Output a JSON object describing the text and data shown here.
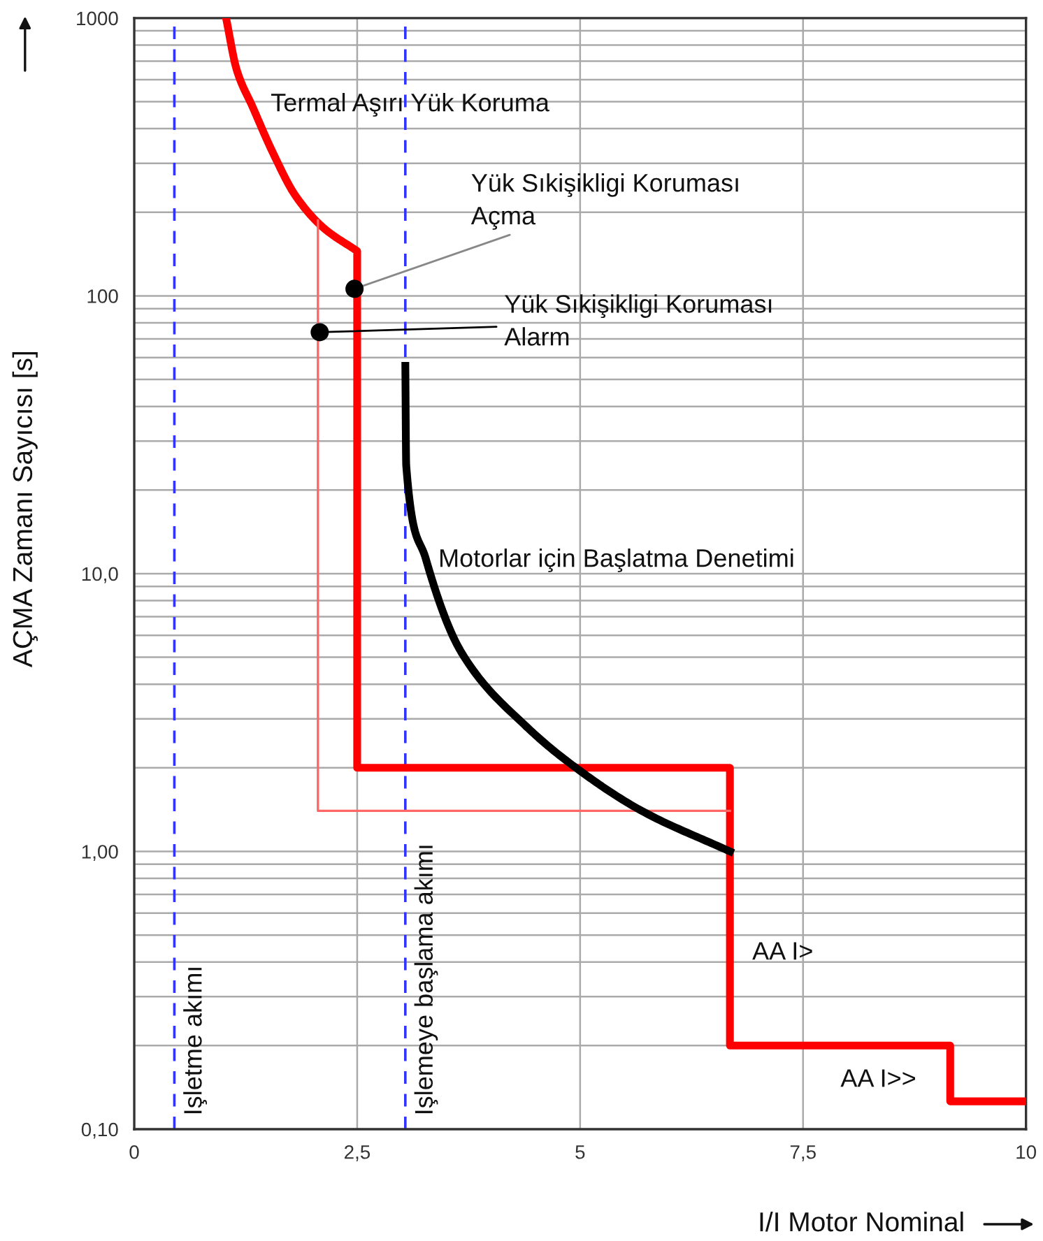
{
  "chart_data": {
    "type": "line",
    "xlabel": "I/I Motor Nominal",
    "ylabel": "AÇMA Zamanı Sayıcısı [s]",
    "log": "y",
    "grid": true,
    "legend": false,
    "marker": "none",
    "line_style": "solid",
    "xlim": [
      0,
      10
    ],
    "xticks": [
      0,
      {
        "value": 2.5,
        "label": "2,5"
      },
      5,
      {
        "value": 7.5,
        "label": "7,5"
      },
      10
    ],
    "ylim": [
      0.1,
      1000
    ],
    "yticks": [
      {
        "value": 0.1,
        "label": "0,10"
      },
      {
        "value": 1,
        "label": "1,00"
      },
      {
        "value": 10,
        "label": "10,0"
      },
      100,
      1000
    ],
    "series": [
      {
        "color": "#ff0000",
        "x": [
          1.03,
          1.15,
          1.33,
          1.56,
          1.81,
          2.12,
          2.5,
          2.5,
          6.68,
          6.68,
          9.15,
          9.15,
          10
        ],
        "values": [
          1000,
          650,
          477,
          325,
          229,
          176,
          145,
          2.0,
          2.0,
          0.2,
          0.2,
          0.126,
          0.126
        ]
      },
      {
        "color": "#ff6666",
        "x": [
          2.06,
          2.06,
          6.68
        ],
        "values": [
          187,
          1.4,
          1.4
        ]
      },
      {
        "color": "#000000",
        "x": [
          3.04,
          3.05,
          3.27,
          3.67,
          4.4,
          4.99,
          5.69,
          6.68
        ],
        "values": [
          56,
          24.5,
          11.3,
          5.2,
          2.81,
          1.96,
          1.4,
          1.0
        ]
      },
      {
        "type": "scatter",
        "marker": "circle",
        "color": "#000000",
        "x": [
          2.47,
          2.08
        ],
        "values": [
          106,
          74
        ]
      }
    ],
    "ref_lines": [
      {
        "axis": "x",
        "value": 0.45,
        "label": "Işletme akımı",
        "color": "#3333ff",
        "line_style": "dashed"
      },
      {
        "axis": "x",
        "value": 3.04,
        "label": "Işlemeye başlama akımı",
        "color": "#3333ff",
        "line_style": "dashed"
      }
    ],
    "annotations": [
      "Termal Aşırı Yük Koruma",
      {
        "text": "Yük Sıkişikligi Koruması\nAçma",
        "x": 2.47,
        "y": 106
      },
      {
        "text": "Yük Sıkişikligi Koruması\nAlarm",
        "x": 2.08,
        "y": 74
      },
      "Motorlar için Başlatma Denetimi",
      "AA I>",
      "AA I>>"
    ]
  }
}
